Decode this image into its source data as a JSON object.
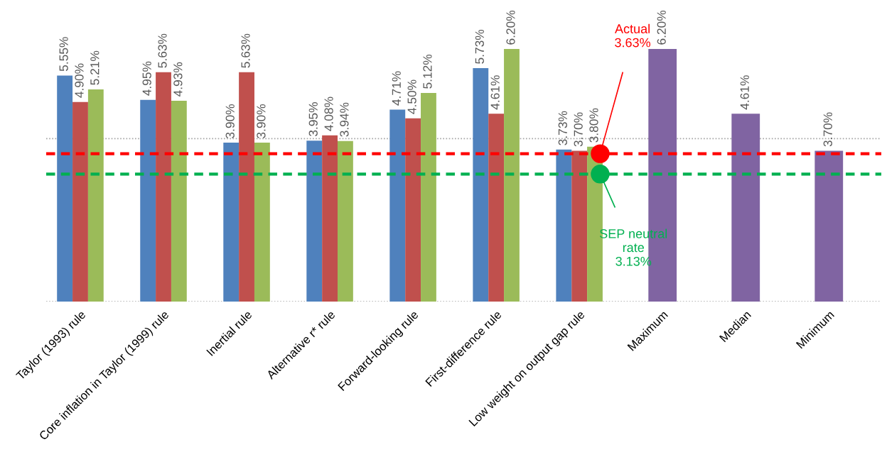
{
  "chart_data": {
    "type": "bar",
    "categories": [
      "Taylor (1993) rule",
      "Core inflation in Taylor (1999) rule",
      "Inertial rule",
      "Alternative r* rule",
      "Forward-looking rule",
      "First-difference rule",
      "Low weight on output gap rule",
      "Maximum",
      "Median",
      "Minimum"
    ],
    "series": [
      {
        "color": "#4f81bd",
        "values": [
          5.55,
          4.95,
          3.9,
          3.95,
          4.71,
          5.73,
          3.73,
          null,
          null,
          null
        ],
        "value_labels": [
          "5.55%",
          "4.95%",
          "3.90%",
          "3.95%",
          "4.71%",
          "5.73%",
          "3.73%",
          null,
          null,
          null
        ]
      },
      {
        "color": "#c0504d",
        "values": [
          4.9,
          5.63,
          5.63,
          4.08,
          4.5,
          4.61,
          3.7,
          null,
          null,
          null
        ],
        "value_labels": [
          "4.90%",
          "5.63%",
          "5.63%",
          "4.08%",
          "4.50%",
          "4.61%",
          "3.70%",
          null,
          null,
          null
        ]
      },
      {
        "color": "#9bbb59",
        "values": [
          5.21,
          4.93,
          3.9,
          3.94,
          5.12,
          6.2,
          3.8,
          null,
          null,
          null
        ],
        "value_labels": [
          "5.21%",
          "4.93%",
          "3.90%",
          "3.94%",
          "5.12%",
          "6.20%",
          "3.80%",
          null,
          null,
          null
        ]
      },
      {
        "color": "#8064a2",
        "values": [
          null,
          null,
          null,
          null,
          null,
          null,
          null,
          6.2,
          4.61,
          3.7
        ],
        "value_labels": [
          null,
          null,
          null,
          null,
          null,
          null,
          null,
          "6.20%",
          "4.61%",
          "3.70%"
        ]
      }
    ],
    "tick_labels": "x",
    "legend": false,
    "ref_lines": [
      {
        "axis": "y",
        "value": 0,
        "color": "#a6a6a6",
        "line_style": "dotted"
      },
      {
        "axis": "y",
        "value": 4,
        "color": "#a6a6a6",
        "line_style": "dotted"
      },
      {
        "axis": "y",
        "value": 3.63,
        "color": "#ff0000",
        "line_style": "dashed",
        "label": "Actual\n3.63%"
      },
      {
        "axis": "y",
        "value": 3.13,
        "color": "#00b050",
        "line_style": "dashed",
        "label": "SEP neutral\nrate\n3.13%"
      }
    ]
  }
}
